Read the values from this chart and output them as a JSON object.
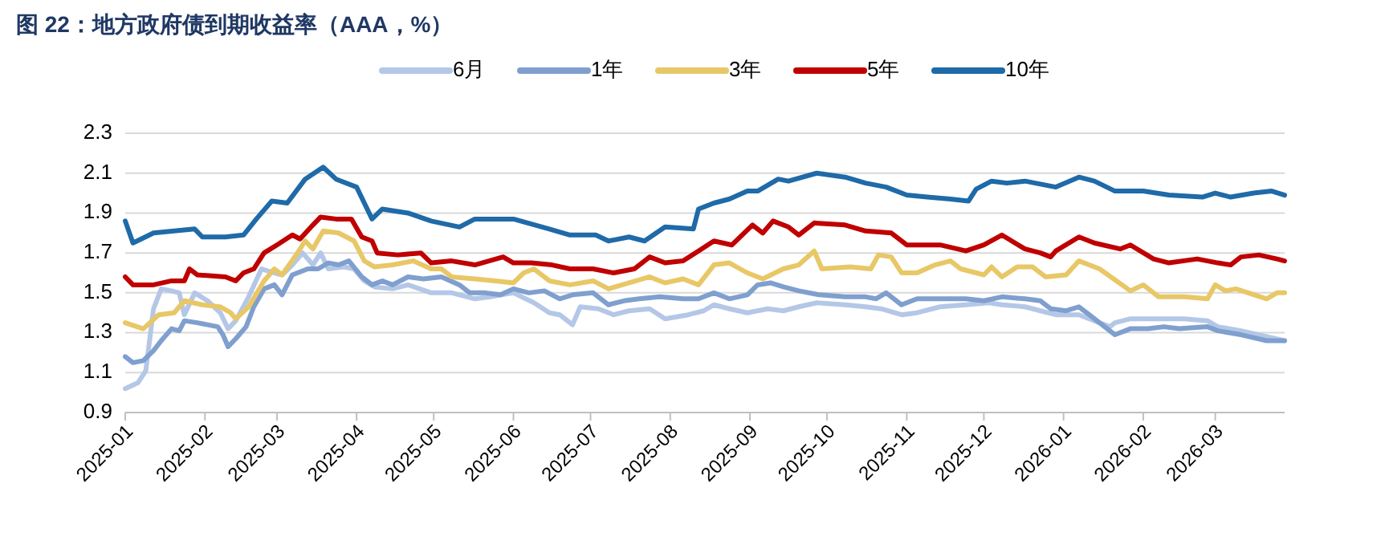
{
  "chart_data": {
    "type": "line",
    "title": "图 22：地方政府债到期收益率（AAA，%）",
    "legend": "top",
    "grid": "y",
    "line_style": "solid",
    "marker": "none",
    "xlim": [
      "2025-01-01",
      "2026-03-28"
    ],
    "xticks": [
      "2025-01",
      "2025-02",
      "2025-03",
      "2025-04",
      "2025-05",
      "2025-06",
      "2025-07",
      "2025-08",
      "2025-09",
      "2025-10",
      "2025-11",
      "2025-12",
      "2026-01",
      "2026-02",
      "2026-03"
    ],
    "ylim": [
      0.9,
      2.3
    ],
    "yticks": [
      0.9,
      1.1,
      1.3,
      1.5,
      1.7,
      1.9,
      2.1,
      2.3
    ],
    "series": [
      {
        "name": "6月",
        "color": "#b4c7e7",
        "x": [
          "2025-01-01",
          "2025-01-06",
          "2025-01-09",
          "2025-01-12",
          "2025-01-15",
          "2025-01-19",
          "2025-01-22",
          "2025-01-24",
          "2025-01-28",
          "2025-02-02",
          "2025-02-07",
          "2025-02-10",
          "2025-02-13",
          "2025-02-18",
          "2025-02-23",
          "2025-02-28",
          "2025-03-03",
          "2025-03-07",
          "2025-03-11",
          "2025-03-15",
          "2025-03-18",
          "2025-03-21",
          "2025-03-27",
          "2025-03-31",
          "2025-04-04",
          "2025-04-08",
          "2025-04-15",
          "2025-04-21",
          "2025-04-30",
          "2025-05-08",
          "2025-05-17",
          "2025-05-23",
          "2025-06-01",
          "2025-06-09",
          "2025-06-15",
          "2025-06-19",
          "2025-06-24",
          "2025-06-27",
          "2025-07-04",
          "2025-07-10",
          "2025-07-16",
          "2025-07-24",
          "2025-07-30",
          "2025-08-08",
          "2025-08-14",
          "2025-08-18",
          "2025-08-24",
          "2025-08-31",
          "2025-09-08",
          "2025-09-14",
          "2025-09-20",
          "2025-09-27",
          "2025-10-08",
          "2025-10-16",
          "2025-10-22",
          "2025-10-30",
          "2025-11-05",
          "2025-11-14",
          "2025-11-24",
          "2025-12-03",
          "2025-12-08",
          "2025-12-17",
          "2025-12-23",
          "2025-12-29",
          "2026-01-07",
          "2026-01-11",
          "2026-01-19",
          "2026-01-21",
          "2026-01-27",
          "2026-02-03",
          "2026-02-09",
          "2026-02-17",
          "2026-02-26",
          "2026-03-02",
          "2026-03-11",
          "2026-03-21",
          "2026-03-28"
        ],
        "values": [
          1.02,
          1.05,
          1.11,
          1.42,
          1.52,
          1.51,
          1.5,
          1.39,
          1.5,
          1.46,
          1.4,
          1.32,
          1.36,
          1.48,
          1.62,
          1.6,
          1.59,
          1.64,
          1.7,
          1.64,
          1.7,
          1.62,
          1.63,
          1.62,
          1.56,
          1.53,
          1.52,
          1.54,
          1.5,
          1.5,
          1.47,
          1.48,
          1.5,
          1.45,
          1.4,
          1.39,
          1.34,
          1.43,
          1.42,
          1.39,
          1.41,
          1.42,
          1.37,
          1.39,
          1.41,
          1.44,
          1.42,
          1.4,
          1.42,
          1.41,
          1.43,
          1.45,
          1.44,
          1.43,
          1.42,
          1.39,
          1.4,
          1.43,
          1.44,
          1.45,
          1.44,
          1.43,
          1.41,
          1.39,
          1.39,
          1.37,
          1.33,
          1.35,
          1.37,
          1.37,
          1.37,
          1.37,
          1.36,
          1.33,
          1.31,
          1.28,
          1.26
        ]
      },
      {
        "name": "1年",
        "color": "#7f9fcf",
        "x": [
          "2025-01-01",
          "2025-01-04",
          "2025-01-08",
          "2025-01-12",
          "2025-01-15",
          "2025-01-19",
          "2025-01-22",
          "2025-01-24",
          "2025-01-29",
          "2025-02-06",
          "2025-02-08",
          "2025-02-10",
          "2025-02-13",
          "2025-02-17",
          "2025-02-20",
          "2025-02-24",
          "2025-02-28",
          "2025-03-03",
          "2025-03-07",
          "2025-03-13",
          "2025-03-17",
          "2025-03-21",
          "2025-03-25",
          "2025-03-29",
          "2025-04-03",
          "2025-04-07",
          "2025-04-11",
          "2025-04-15",
          "2025-04-21",
          "2025-04-27",
          "2025-05-04",
          "2025-05-11",
          "2025-05-15",
          "2025-05-21",
          "2025-05-27",
          "2025-06-01",
          "2025-06-07",
          "2025-06-13",
          "2025-06-19",
          "2025-06-24",
          "2025-07-02",
          "2025-07-08",
          "2025-07-14",
          "2025-07-20",
          "2025-07-28",
          "2025-08-06",
          "2025-08-12",
          "2025-08-18",
          "2025-08-24",
          "2025-08-31",
          "2025-09-04",
          "2025-09-09",
          "2025-09-14",
          "2025-09-20",
          "2025-09-28",
          "2025-10-08",
          "2025-10-16",
          "2025-10-20",
          "2025-10-24",
          "2025-10-30",
          "2025-11-05",
          "2025-11-14",
          "2025-11-24",
          "2025-12-01",
          "2025-12-08",
          "2025-12-17",
          "2025-12-23",
          "2025-12-27",
          "2026-01-02",
          "2026-01-07",
          "2026-01-11",
          "2026-01-15",
          "2026-01-21",
          "2026-01-27",
          "2026-02-03",
          "2026-02-09",
          "2026-02-15",
          "2026-02-26",
          "2026-03-02",
          "2026-03-11",
          "2026-03-21",
          "2026-03-28"
        ],
        "values": [
          1.18,
          1.15,
          1.16,
          1.21,
          1.26,
          1.32,
          1.31,
          1.36,
          1.35,
          1.33,
          1.29,
          1.23,
          1.27,
          1.33,
          1.43,
          1.52,
          1.54,
          1.49,
          1.59,
          1.62,
          1.62,
          1.65,
          1.64,
          1.66,
          1.58,
          1.54,
          1.56,
          1.54,
          1.58,
          1.57,
          1.58,
          1.54,
          1.5,
          1.5,
          1.49,
          1.52,
          1.5,
          1.51,
          1.47,
          1.49,
          1.5,
          1.44,
          1.46,
          1.47,
          1.48,
          1.47,
          1.47,
          1.5,
          1.47,
          1.49,
          1.54,
          1.55,
          1.53,
          1.51,
          1.49,
          1.48,
          1.48,
          1.47,
          1.5,
          1.44,
          1.47,
          1.47,
          1.47,
          1.46,
          1.48,
          1.47,
          1.46,
          1.42,
          1.41,
          1.43,
          1.39,
          1.35,
          1.29,
          1.32,
          1.32,
          1.33,
          1.32,
          1.33,
          1.31,
          1.29,
          1.26,
          1.26
        ]
      },
      {
        "name": "3年",
        "color": "#e8c766",
        "x": [
          "2025-01-01",
          "2025-01-08",
          "2025-01-14",
          "2025-01-20",
          "2025-01-24",
          "2025-01-31",
          "2025-02-07",
          "2025-02-11",
          "2025-02-13",
          "2025-02-18",
          "2025-02-24",
          "2025-02-28",
          "2025-03-03",
          "2025-03-09",
          "2025-03-12",
          "2025-03-15",
          "2025-03-19",
          "2025-03-25",
          "2025-03-31",
          "2025-04-04",
          "2025-04-08",
          "2025-04-15",
          "2025-04-23",
          "2025-04-30",
          "2025-05-04",
          "2025-05-08",
          "2025-05-17",
          "2025-05-25",
          "2025-06-01",
          "2025-06-05",
          "2025-06-09",
          "2025-06-15",
          "2025-06-23",
          "2025-07-02",
          "2025-07-08",
          "2025-07-16",
          "2025-07-24",
          "2025-07-30",
          "2025-08-06",
          "2025-08-12",
          "2025-08-18",
          "2025-08-24",
          "2025-08-31",
          "2025-09-06",
          "2025-09-14",
          "2025-09-20",
          "2025-09-26",
          "2025-09-29",
          "2025-10-10",
          "2025-10-18",
          "2025-10-21",
          "2025-10-26",
          "2025-10-30",
          "2025-11-05",
          "2025-11-12",
          "2025-11-18",
          "2025-11-22",
          "2025-12-01",
          "2025-12-04",
          "2025-12-08",
          "2025-12-14",
          "2025-12-20",
          "2025-12-25",
          "2026-01-02",
          "2026-01-07",
          "2026-01-15",
          "2026-01-27",
          "2026-02-01",
          "2026-02-07",
          "2026-02-17",
          "2026-02-26",
          "2026-03-01",
          "2026-03-05",
          "2026-03-09",
          "2026-03-21",
          "2026-03-25",
          "2026-03-28"
        ],
        "values": [
          1.35,
          1.32,
          1.39,
          1.4,
          1.46,
          1.44,
          1.43,
          1.4,
          1.37,
          1.43,
          1.56,
          1.62,
          1.59,
          1.7,
          1.76,
          1.72,
          1.81,
          1.8,
          1.76,
          1.66,
          1.63,
          1.64,
          1.66,
          1.62,
          1.62,
          1.58,
          1.57,
          1.56,
          1.55,
          1.6,
          1.62,
          1.56,
          1.54,
          1.56,
          1.52,
          1.55,
          1.58,
          1.55,
          1.57,
          1.54,
          1.64,
          1.65,
          1.6,
          1.57,
          1.62,
          1.64,
          1.71,
          1.62,
          1.63,
          1.62,
          1.69,
          1.68,
          1.6,
          1.6,
          1.64,
          1.66,
          1.62,
          1.59,
          1.63,
          1.58,
          1.63,
          1.63,
          1.58,
          1.59,
          1.66,
          1.62,
          1.51,
          1.54,
          1.48,
          1.48,
          1.47,
          1.54,
          1.51,
          1.52,
          1.47,
          1.5,
          1.5
        ]
      },
      {
        "name": "5年",
        "color": "#c00000",
        "x": [
          "2025-01-01",
          "2025-01-04",
          "2025-01-12",
          "2025-01-19",
          "2025-01-24",
          "2025-01-26",
          "2025-01-29",
          "2025-02-09",
          "2025-02-13",
          "2025-02-16",
          "2025-02-20",
          "2025-02-24",
          "2025-03-01",
          "2025-03-07",
          "2025-03-10",
          "2025-03-15",
          "2025-03-18",
          "2025-03-24",
          "2025-03-30",
          "2025-04-03",
          "2025-04-07",
          "2025-04-09",
          "2025-04-17",
          "2025-04-26",
          "2025-04-30",
          "2025-05-08",
          "2025-05-17",
          "2025-05-28",
          "2025-06-01",
          "2025-06-08",
          "2025-06-16",
          "2025-06-23",
          "2025-07-02",
          "2025-07-10",
          "2025-07-18",
          "2025-07-24",
          "2025-07-30",
          "2025-08-06",
          "2025-08-12",
          "2025-08-18",
          "2025-08-25",
          "2025-09-02",
          "2025-09-06",
          "2025-09-10",
          "2025-09-16",
          "2025-09-20",
          "2025-09-26",
          "2025-10-08",
          "2025-10-16",
          "2025-10-26",
          "2025-11-01",
          "2025-11-04",
          "2025-11-14",
          "2025-11-24",
          "2025-12-01",
          "2025-12-08",
          "2025-12-17",
          "2025-12-23",
          "2025-12-27",
          "2025-12-29",
          "2026-01-07",
          "2026-01-13",
          "2026-01-23",
          "2026-01-27",
          "2026-02-05",
          "2026-02-11",
          "2026-02-22",
          "2026-03-02",
          "2026-03-07",
          "2026-03-11",
          "2026-03-18",
          "2026-03-25",
          "2026-03-28"
        ],
        "values": [
          1.58,
          1.54,
          1.54,
          1.56,
          1.56,
          1.62,
          1.59,
          1.58,
          1.56,
          1.6,
          1.62,
          1.7,
          1.74,
          1.79,
          1.77,
          1.84,
          1.88,
          1.87,
          1.87,
          1.78,
          1.76,
          1.7,
          1.69,
          1.7,
          1.65,
          1.66,
          1.64,
          1.68,
          1.65,
          1.65,
          1.64,
          1.62,
          1.62,
          1.6,
          1.62,
          1.68,
          1.65,
          1.66,
          1.71,
          1.76,
          1.74,
          1.84,
          1.8,
          1.86,
          1.83,
          1.79,
          1.85,
          1.84,
          1.81,
          1.8,
          1.74,
          1.74,
          1.74,
          1.71,
          1.74,
          1.79,
          1.72,
          1.7,
          1.68,
          1.71,
          1.78,
          1.75,
          1.72,
          1.74,
          1.67,
          1.65,
          1.67,
          1.65,
          1.64,
          1.68,
          1.69,
          1.67,
          1.66
        ]
      },
      {
        "name": "10年",
        "color": "#1f6aa8",
        "x": [
          "2025-01-01",
          "2025-01-04",
          "2025-01-12",
          "2025-01-28",
          "2025-01-31",
          "2025-02-09",
          "2025-02-16",
          "2025-02-21",
          "2025-02-27",
          "2025-03-05",
          "2025-03-12",
          "2025-03-19",
          "2025-03-24",
          "2025-04-01",
          "2025-04-07",
          "2025-04-11",
          "2025-04-21",
          "2025-04-30",
          "2025-05-11",
          "2025-05-17",
          "2025-06-01",
          "2025-06-15",
          "2025-06-23",
          "2025-07-03",
          "2025-07-08",
          "2025-07-16",
          "2025-07-22",
          "2025-07-30",
          "2025-08-10",
          "2025-08-12",
          "2025-08-18",
          "2025-08-24",
          "2025-08-31",
          "2025-09-04",
          "2025-09-12",
          "2025-09-16",
          "2025-09-27",
          "2025-10-08",
          "2025-10-16",
          "2025-10-24",
          "2025-11-01",
          "2025-11-09",
          "2025-11-18",
          "2025-11-25",
          "2025-11-28",
          "2025-12-04",
          "2025-12-10",
          "2025-12-17",
          "2025-12-25",
          "2025-12-29",
          "2026-01-07",
          "2026-01-13",
          "2026-01-21",
          "2026-02-01",
          "2026-02-11",
          "2026-02-24",
          "2026-03-01",
          "2026-03-07",
          "2026-03-16",
          "2026-03-23",
          "2026-03-28"
        ],
        "values": [
          1.86,
          1.75,
          1.8,
          1.82,
          1.78,
          1.78,
          1.79,
          1.87,
          1.96,
          1.95,
          2.07,
          2.13,
          2.07,
          2.03,
          1.87,
          1.92,
          1.9,
          1.86,
          1.83,
          1.87,
          1.87,
          1.82,
          1.79,
          1.79,
          1.76,
          1.78,
          1.76,
          1.83,
          1.82,
          1.92,
          1.95,
          1.97,
          2.01,
          2.01,
          2.07,
          2.06,
          2.1,
          2.08,
          2.05,
          2.03,
          1.99,
          1.98,
          1.97,
          1.96,
          2.02,
          2.06,
          2.05,
          2.06,
          2.04,
          2.03,
          2.08,
          2.06,
          2.01,
          2.01,
          1.99,
          1.98,
          2.0,
          1.98,
          2.0,
          2.01,
          1.99
        ]
      }
    ]
  }
}
